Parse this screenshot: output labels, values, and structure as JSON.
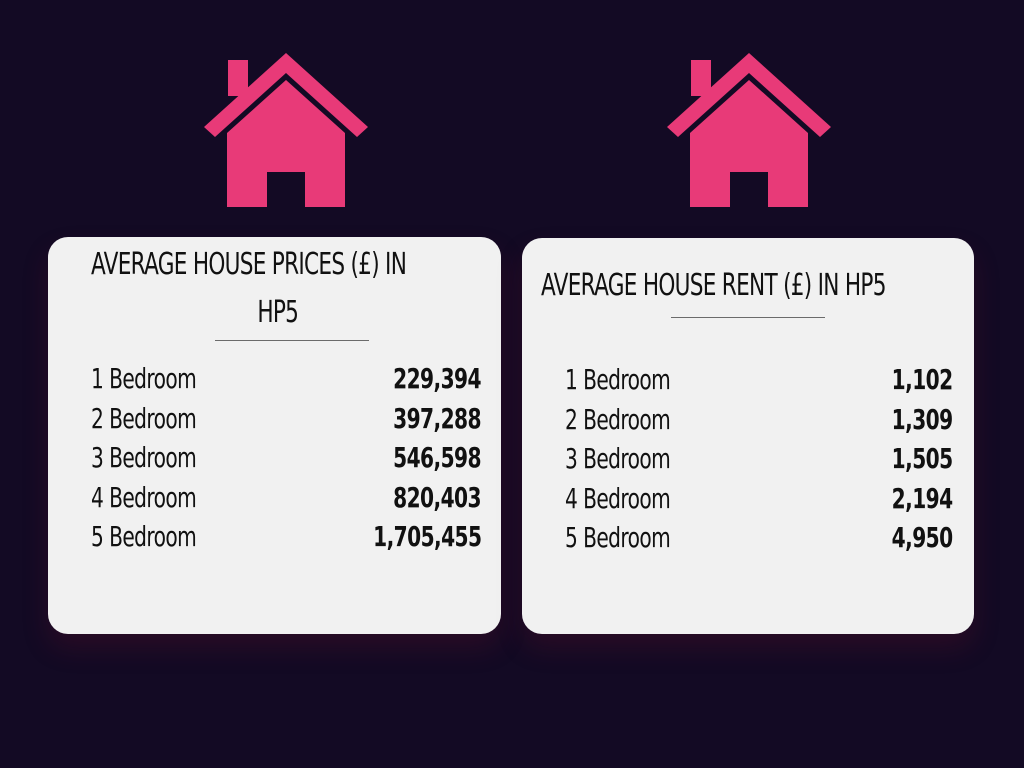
{
  "colors": {
    "background": "#130a24",
    "accent": "#e83a78",
    "card": "#f1f1f1",
    "text": "#111111"
  },
  "icons": [
    "house-icon",
    "house-icon"
  ],
  "prices_card": {
    "title_line1": "AVERAGE HOUSE PRICES (£) IN",
    "title_line2": "HP5",
    "rows": [
      {
        "label": "1 Bedroom",
        "value": "229,394"
      },
      {
        "label": "2 Bedroom",
        "value": "397,288"
      },
      {
        "label": "3 Bedroom",
        "value": "546,598"
      },
      {
        "label": "4 Bedroom",
        "value": "820,403"
      },
      {
        "label": "5 Bedroom",
        "value": "1,705,455"
      }
    ]
  },
  "rent_card": {
    "title": "AVERAGE HOUSE RENT (£) IN HP5",
    "rows": [
      {
        "label": "1 Bedroom",
        "value": "1,102"
      },
      {
        "label": "2 Bedroom",
        "value": "1,309"
      },
      {
        "label": "3 Bedroom",
        "value": "1,505"
      },
      {
        "label": "4 Bedroom",
        "value": "2,194"
      },
      {
        "label": "5 Bedroom",
        "value": "4,950"
      }
    ]
  }
}
